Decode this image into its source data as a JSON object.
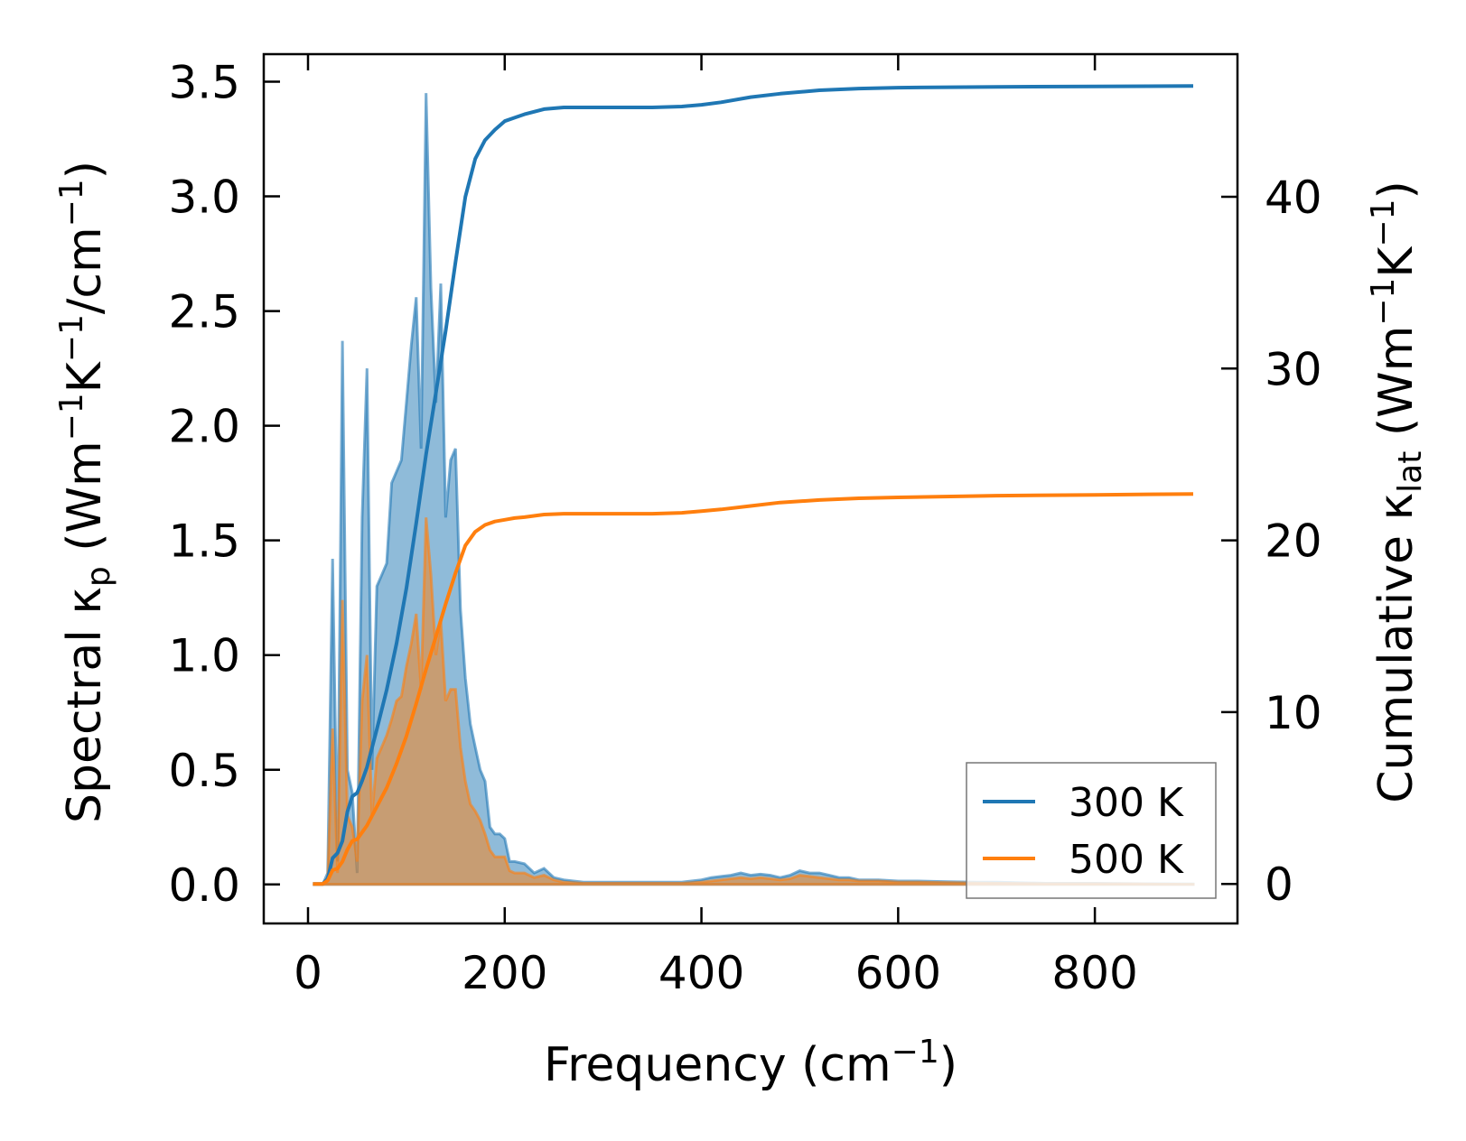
{
  "chart_data": {
    "type": "line",
    "title": "",
    "xlabel": "Frequency (cm",
    "xlabel_sup": "−1",
    "xlabel_end": ")",
    "ylabel_left": {
      "a": "Spectral κ",
      "sub": "p",
      "b": " (Wm",
      "sup1": "−1",
      "c": "K",
      "sup2": "−1",
      "d": "/cm",
      "sup3": "−1",
      "e": ")"
    },
    "ylabel_right": {
      "a": "Cumulative κ",
      "sub": "lat",
      "b": " (Wm",
      "sup1": "−1",
      "c": "K",
      "sup2": "−1",
      "d": ")"
    },
    "xlim": [
      -45,
      945
    ],
    "ylim_left": [
      -0.17,
      3.62
    ],
    "ylim_right": [
      -2.3,
      48.3
    ],
    "x_ticks": [
      0,
      200,
      400,
      600,
      800
    ],
    "x_tick_labels": [
      "0",
      "200",
      "400",
      "600",
      "800"
    ],
    "y_left_ticks": [
      0.0,
      0.5,
      1.0,
      1.5,
      2.0,
      2.5,
      3.0,
      3.5
    ],
    "y_left_tick_labels": [
      "0.0",
      "0.5",
      "1.0",
      "1.5",
      "2.0",
      "2.5",
      "3.0",
      "3.5"
    ],
    "y_right_ticks": [
      0,
      10,
      20,
      30,
      40
    ],
    "y_right_tick_labels": [
      "0",
      "10",
      "20",
      "30",
      "40"
    ],
    "legend": {
      "position": "lower-right"
    },
    "colors": {
      "300 K": "#1f77b4",
      "500 K": "#ff7f0e"
    },
    "series": [
      {
        "name": "300 K",
        "axis": "left",
        "style": "filled",
        "x": [
          5,
          15,
          20,
          25,
          30,
          35,
          40,
          45,
          50,
          55,
          60,
          65,
          70,
          75,
          80,
          85,
          90,
          95,
          100,
          105,
          110,
          115,
          120,
          125,
          130,
          135,
          140,
          145,
          150,
          155,
          160,
          165,
          170,
          175,
          180,
          185,
          190,
          195,
          200,
          205,
          210,
          220,
          230,
          240,
          250,
          260,
          280,
          300,
          350,
          380,
          400,
          410,
          420,
          430,
          440,
          450,
          460,
          470,
          480,
          490,
          500,
          510,
          520,
          530,
          540,
          550,
          560,
          580,
          600,
          620,
          650,
          680,
          700,
          750,
          800,
          850,
          900
        ],
        "values": [
          0,
          0,
          0.05,
          1.42,
          0.1,
          2.37,
          0.5,
          0.4,
          0.05,
          1.6,
          2.25,
          0.5,
          1.3,
          1.35,
          1.4,
          1.75,
          1.8,
          1.85,
          2.1,
          2.35,
          2.56,
          1.9,
          3.45,
          2.6,
          2.1,
          2.62,
          1.6,
          1.85,
          1.9,
          1.2,
          0.9,
          0.7,
          0.6,
          0.5,
          0.45,
          0.25,
          0.22,
          0.22,
          0.2,
          0.1,
          0.1,
          0.09,
          0.05,
          0.07,
          0.03,
          0.02,
          0.01,
          0.01,
          0.01,
          0.01,
          0.02,
          0.03,
          0.035,
          0.04,
          0.05,
          0.04,
          0.045,
          0.04,
          0.03,
          0.04,
          0.06,
          0.05,
          0.05,
          0.04,
          0.03,
          0.03,
          0.02,
          0.02,
          0.015,
          0.015,
          0.012,
          0.01,
          0.01,
          0.005,
          0.005,
          0.003,
          0.002
        ]
      },
      {
        "name": "500 K",
        "axis": "left",
        "style": "filled",
        "x": [
          5,
          15,
          20,
          25,
          30,
          35,
          40,
          45,
          50,
          55,
          60,
          65,
          70,
          75,
          80,
          85,
          90,
          95,
          100,
          105,
          110,
          115,
          120,
          125,
          130,
          135,
          140,
          145,
          150,
          155,
          160,
          165,
          170,
          175,
          180,
          185,
          190,
          195,
          200,
          205,
          210,
          220,
          230,
          240,
          250,
          260,
          280,
          300,
          350,
          380,
          400,
          410,
          420,
          430,
          440,
          450,
          460,
          470,
          480,
          490,
          500,
          510,
          520,
          530,
          540,
          550,
          560,
          580,
          600,
          620,
          650,
          680,
          700,
          750,
          800,
          850,
          900
        ],
        "values": [
          0,
          0,
          0.02,
          0.68,
          0.05,
          1.24,
          0.3,
          0.25,
          0.1,
          0.8,
          1.0,
          0.3,
          0.55,
          0.6,
          0.65,
          0.72,
          0.8,
          0.82,
          0.95,
          1.05,
          1.18,
          0.85,
          1.6,
          1.35,
          1.0,
          1.15,
          0.8,
          0.85,
          0.85,
          0.6,
          0.45,
          0.35,
          0.32,
          0.28,
          0.22,
          0.15,
          0.12,
          0.12,
          0.12,
          0.06,
          0.05,
          0.05,
          0.03,
          0.04,
          0.02,
          0.01,
          0.005,
          0.005,
          0.005,
          0.005,
          0.01,
          0.015,
          0.02,
          0.025,
          0.03,
          0.025,
          0.03,
          0.025,
          0.02,
          0.025,
          0.04,
          0.035,
          0.03,
          0.025,
          0.02,
          0.02,
          0.015,
          0.015,
          0.01,
          0.01,
          0.008,
          0.006,
          0.005,
          0.003,
          0.003,
          0.002,
          0.001
        ]
      },
      {
        "name": "300 K",
        "axis": "right",
        "style": "line",
        "x": [
          5,
          15,
          20,
          25,
          30,
          35,
          40,
          45,
          50,
          55,
          60,
          70,
          80,
          90,
          100,
          110,
          120,
          130,
          140,
          150,
          160,
          170,
          180,
          190,
          200,
          210,
          220,
          240,
          260,
          280,
          300,
          350,
          380,
          400,
          420,
          450,
          480,
          520,
          560,
          600,
          700,
          800,
          900
        ],
        "values": [
          0,
          0,
          0.3,
          1.5,
          1.8,
          2.5,
          4.2,
          5.1,
          5.3,
          6.0,
          6.8,
          9.0,
          11.3,
          14.0,
          17.2,
          21.0,
          25.0,
          28.6,
          32.2,
          36.2,
          40.0,
          42.2,
          43.3,
          43.9,
          44.4,
          44.6,
          44.8,
          45.1,
          45.2,
          45.2,
          45.2,
          45.2,
          45.25,
          45.35,
          45.5,
          45.8,
          46.0,
          46.2,
          46.3,
          46.35,
          46.4,
          46.42,
          46.45
        ]
      },
      {
        "name": "500 K",
        "axis": "right",
        "style": "line",
        "x": [
          5,
          15,
          20,
          25,
          30,
          35,
          40,
          45,
          50,
          55,
          60,
          70,
          80,
          90,
          100,
          110,
          120,
          130,
          140,
          150,
          160,
          170,
          180,
          190,
          200,
          210,
          220,
          240,
          260,
          280,
          300,
          350,
          380,
          400,
          420,
          450,
          480,
          520,
          560,
          600,
          700,
          800,
          900
        ],
        "values": [
          0,
          0,
          0.2,
          0.8,
          0.9,
          1.3,
          2.0,
          2.5,
          2.6,
          3.0,
          3.4,
          4.5,
          5.6,
          7.0,
          8.6,
          10.5,
          12.5,
          14.4,
          16.3,
          18.1,
          19.7,
          20.5,
          20.9,
          21.1,
          21.2,
          21.3,
          21.35,
          21.5,
          21.55,
          21.55,
          21.55,
          21.55,
          21.6,
          21.7,
          21.8,
          22.0,
          22.2,
          22.35,
          22.45,
          22.5,
          22.6,
          22.65,
          22.7
        ]
      }
    ]
  }
}
